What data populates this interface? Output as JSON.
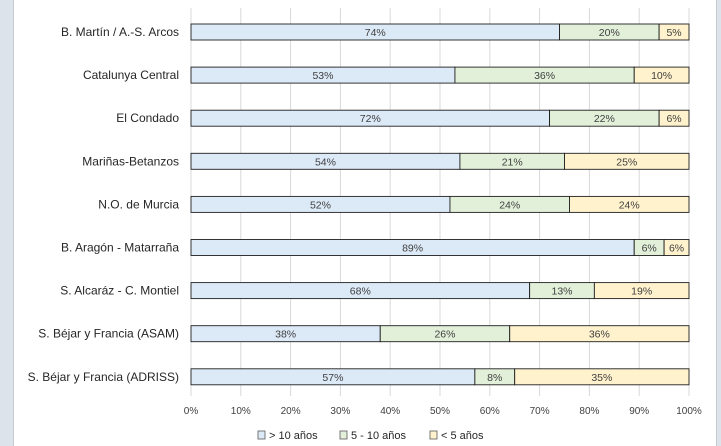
{
  "chart_data": {
    "type": "bar",
    "orientation": "horizontal",
    "stacked": true,
    "categories": [
      "B. Martín / A.-S. Arcos",
      "Catalunya Central",
      "El Condado",
      "Mariñas-Betanzos",
      "N.O. de Murcia",
      "B. Aragón - Matarraña",
      "S. Alcaráz - C. Montiel",
      "S. Béjar y Francia (ASAM)",
      "S. Béjar y Francia (ADRISS)"
    ],
    "series": [
      {
        "name": "> 10 años",
        "color": "#dce9f7",
        "values": [
          74,
          53,
          72,
          54,
          52,
          89,
          68,
          38,
          57
        ]
      },
      {
        "name": "5 - 10 años",
        "color": "#e2f0d9",
        "values": [
          20,
          36,
          22,
          21,
          24,
          6,
          13,
          26,
          8
        ]
      },
      {
        "name": "< 5 años",
        "color": "#fff2cc",
        "values": [
          5,
          10,
          6,
          25,
          24,
          6,
          19,
          36,
          35
        ]
      }
    ],
    "xlim": [
      0,
      100
    ],
    "xticks": [
      "0%",
      "10%",
      "20%",
      "30%",
      "40%",
      "50%",
      "60%",
      "70%",
      "80%",
      "90%",
      "100%"
    ],
    "value_suffix": "%",
    "grid": "vertical",
    "legend_position": "bottom"
  }
}
